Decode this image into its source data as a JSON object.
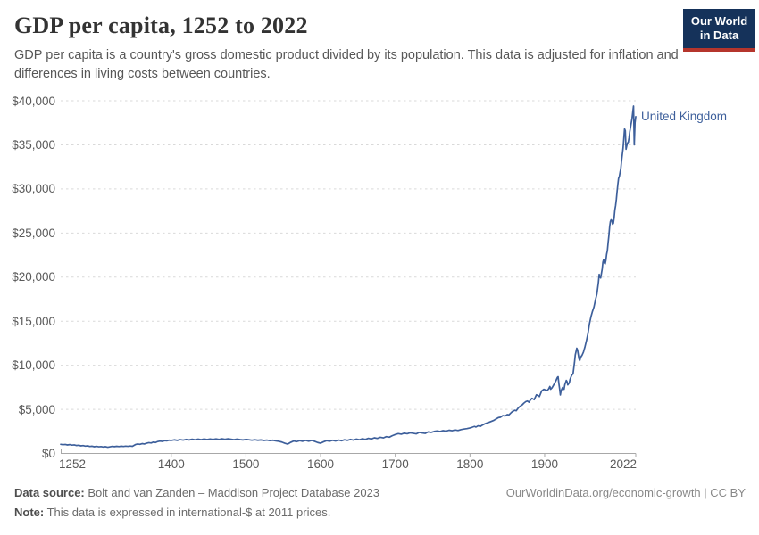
{
  "header": {
    "title": "GDP per capita, 1252 to 2022",
    "subtitle": "GDP per capita is a country's gross domestic product divided by its population. This data is adjusted for inflation and differences in living costs between countries.",
    "logo_line1": "Our World",
    "logo_line2": "in Data"
  },
  "footer": {
    "source_label": "Data source:",
    "source_text": " Bolt and van Zanden – Maddison Project Database 2023",
    "note_label": "Note:",
    "note_text": " This data is expressed in international-$ at 2011 prices.",
    "link_text": "OurWorldinData.org/economic-growth | CC BY"
  },
  "colors": {
    "line": "#3d5f9b",
    "grid": "#d9d9d9",
    "axis": "#a8a8a8",
    "tick_text": "#5a5a5a",
    "logo_bg": "#15325a",
    "logo_accent": "#b5352c"
  },
  "chart_data": {
    "type": "line",
    "title": "GDP per capita, 1252 to 2022",
    "xlabel": "",
    "ylabel": "",
    "xlim": [
      1252,
      2022
    ],
    "ylim": [
      0,
      40000
    ],
    "grid": "horizontal-dashed",
    "legend": "end-of-line-label",
    "x_ticks": [
      {
        "value": 1252,
        "label": "1252"
      },
      {
        "value": 1400,
        "label": "1400"
      },
      {
        "value": 1500,
        "label": "1500"
      },
      {
        "value": 1600,
        "label": "1600"
      },
      {
        "value": 1700,
        "label": "1700"
      },
      {
        "value": 1800,
        "label": "1800"
      },
      {
        "value": 1900,
        "label": "1900"
      },
      {
        "value": 2022,
        "label": "2022"
      }
    ],
    "y_ticks": [
      {
        "value": 0,
        "label": "$0"
      },
      {
        "value": 5000,
        "label": "$5,000"
      },
      {
        "value": 10000,
        "label": "$10,000"
      },
      {
        "value": 15000,
        "label": "$15,000"
      },
      {
        "value": 20000,
        "label": "$20,000"
      },
      {
        "value": 25000,
        "label": "$25,000"
      },
      {
        "value": 30000,
        "label": "$30,000"
      },
      {
        "value": 35000,
        "label": "$35,000"
      },
      {
        "value": 40000,
        "label": "$40,000"
      }
    ],
    "series": [
      {
        "name": "United Kingdom",
        "color": "#3d5f9b",
        "points": [
          [
            1252,
            1030
          ],
          [
            1255,
            990
          ],
          [
            1258,
            1020
          ],
          [
            1261,
            960
          ],
          [
            1264,
            1000
          ],
          [
            1267,
            940
          ],
          [
            1270,
            970
          ],
          [
            1273,
            900
          ],
          [
            1276,
            930
          ],
          [
            1279,
            860
          ],
          [
            1282,
            890
          ],
          [
            1285,
            830
          ],
          [
            1288,
            860
          ],
          [
            1291,
            790
          ],
          [
            1294,
            820
          ],
          [
            1297,
            760
          ],
          [
            1300,
            800
          ],
          [
            1303,
            750
          ],
          [
            1306,
            780
          ],
          [
            1309,
            730
          ],
          [
            1312,
            770
          ],
          [
            1315,
            700
          ],
          [
            1318,
            750
          ],
          [
            1321,
            800
          ],
          [
            1324,
            770
          ],
          [
            1327,
            810
          ],
          [
            1330,
            780
          ],
          [
            1333,
            820
          ],
          [
            1336,
            790
          ],
          [
            1339,
            830
          ],
          [
            1342,
            800
          ],
          [
            1345,
            840
          ],
          [
            1348,
            810
          ],
          [
            1352,
            1000
          ],
          [
            1355,
            1070
          ],
          [
            1358,
            1030
          ],
          [
            1361,
            1110
          ],
          [
            1364,
            1070
          ],
          [
            1367,
            1160
          ],
          [
            1370,
            1220
          ],
          [
            1373,
            1180
          ],
          [
            1376,
            1280
          ],
          [
            1379,
            1240
          ],
          [
            1382,
            1350
          ],
          [
            1385,
            1400
          ],
          [
            1388,
            1360
          ],
          [
            1391,
            1450
          ],
          [
            1394,
            1420
          ],
          [
            1397,
            1500
          ],
          [
            1400,
            1470
          ],
          [
            1404,
            1540
          ],
          [
            1408,
            1480
          ],
          [
            1412,
            1560
          ],
          [
            1416,
            1510
          ],
          [
            1420,
            1590
          ],
          [
            1424,
            1530
          ],
          [
            1428,
            1610
          ],
          [
            1432,
            1550
          ],
          [
            1436,
            1620
          ],
          [
            1440,
            1560
          ],
          [
            1444,
            1630
          ],
          [
            1448,
            1570
          ],
          [
            1452,
            1640
          ],
          [
            1456,
            1580
          ],
          [
            1460,
            1650
          ],
          [
            1464,
            1590
          ],
          [
            1468,
            1655
          ],
          [
            1472,
            1600
          ],
          [
            1476,
            1660
          ],
          [
            1480,
            1610
          ],
          [
            1484,
            1560
          ],
          [
            1488,
            1620
          ],
          [
            1492,
            1570
          ],
          [
            1496,
            1530
          ],
          [
            1500,
            1590
          ],
          [
            1504,
            1550
          ],
          [
            1508,
            1500
          ],
          [
            1512,
            1545
          ],
          [
            1516,
            1490
          ],
          [
            1520,
            1530
          ],
          [
            1524,
            1470
          ],
          [
            1528,
            1510
          ],
          [
            1532,
            1450
          ],
          [
            1536,
            1490
          ],
          [
            1540,
            1430
          ],
          [
            1544,
            1370
          ],
          [
            1548,
            1290
          ],
          [
            1552,
            1160
          ],
          [
            1556,
            1060
          ],
          [
            1560,
            1260
          ],
          [
            1564,
            1410
          ],
          [
            1568,
            1340
          ],
          [
            1572,
            1450
          ],
          [
            1576,
            1380
          ],
          [
            1580,
            1470
          ],
          [
            1584,
            1390
          ],
          [
            1588,
            1480
          ],
          [
            1592,
            1370
          ],
          [
            1596,
            1240
          ],
          [
            1600,
            1160
          ],
          [
            1604,
            1320
          ],
          [
            1608,
            1450
          ],
          [
            1612,
            1390
          ],
          [
            1616,
            1490
          ],
          [
            1620,
            1410
          ],
          [
            1624,
            1510
          ],
          [
            1628,
            1440
          ],
          [
            1632,
            1550
          ],
          [
            1636,
            1480
          ],
          [
            1640,
            1590
          ],
          [
            1644,
            1510
          ],
          [
            1648,
            1620
          ],
          [
            1652,
            1550
          ],
          [
            1656,
            1660
          ],
          [
            1660,
            1590
          ],
          [
            1664,
            1710
          ],
          [
            1668,
            1640
          ],
          [
            1672,
            1770
          ],
          [
            1676,
            1700
          ],
          [
            1680,
            1830
          ],
          [
            1684,
            1760
          ],
          [
            1688,
            1900
          ],
          [
            1692,
            1840
          ],
          [
            1696,
            2010
          ],
          [
            1700,
            2140
          ],
          [
            1704,
            2240
          ],
          [
            1708,
            2180
          ],
          [
            1712,
            2290
          ],
          [
            1716,
            2230
          ],
          [
            1720,
            2340
          ],
          [
            1724,
            2280
          ],
          [
            1728,
            2220
          ],
          [
            1732,
            2380
          ],
          [
            1736,
            2320
          ],
          [
            1740,
            2270
          ],
          [
            1744,
            2440
          ],
          [
            1748,
            2380
          ],
          [
            1752,
            2490
          ],
          [
            1756,
            2540
          ],
          [
            1760,
            2480
          ],
          [
            1764,
            2580
          ],
          [
            1768,
            2520
          ],
          [
            1772,
            2630
          ],
          [
            1776,
            2570
          ],
          [
            1780,
            2660
          ],
          [
            1784,
            2600
          ],
          [
            1788,
            2700
          ],
          [
            1792,
            2760
          ],
          [
            1796,
            2810
          ],
          [
            1800,
            2890
          ],
          [
            1803,
            2970
          ],
          [
            1806,
            3060
          ],
          [
            1808,
            2990
          ],
          [
            1811,
            3130
          ],
          [
            1814,
            3070
          ],
          [
            1817,
            3230
          ],
          [
            1820,
            3360
          ],
          [
            1823,
            3460
          ],
          [
            1826,
            3550
          ],
          [
            1829,
            3650
          ],
          [
            1832,
            3750
          ],
          [
            1835,
            3910
          ],
          [
            1838,
            4060
          ],
          [
            1841,
            4110
          ],
          [
            1844,
            4290
          ],
          [
            1847,
            4240
          ],
          [
            1850,
            4410
          ],
          [
            1852,
            4360
          ],
          [
            1855,
            4610
          ],
          [
            1857,
            4760
          ],
          [
            1860,
            4890
          ],
          [
            1862,
            4840
          ],
          [
            1865,
            5190
          ],
          [
            1867,
            5340
          ],
          [
            1870,
            5510
          ],
          [
            1872,
            5690
          ],
          [
            1875,
            5890
          ],
          [
            1877,
            5940
          ],
          [
            1879,
            5800
          ],
          [
            1881,
            6060
          ],
          [
            1883,
            6250
          ],
          [
            1886,
            6100
          ],
          [
            1889,
            6650
          ],
          [
            1891,
            6560
          ],
          [
            1893,
            6450
          ],
          [
            1896,
            7090
          ],
          [
            1899,
            7270
          ],
          [
            1901,
            7200
          ],
          [
            1903,
            7130
          ],
          [
            1905,
            7270
          ],
          [
            1907,
            7590
          ],
          [
            1908,
            7280
          ],
          [
            1910,
            7460
          ],
          [
            1913,
            7910
          ],
          [
            1915,
            8230
          ],
          [
            1917,
            8610
          ],
          [
            1918,
            8700
          ],
          [
            1919,
            7950
          ],
          [
            1920,
            7360
          ],
          [
            1921,
            6630
          ],
          [
            1922,
            7110
          ],
          [
            1924,
            7470
          ],
          [
            1926,
            7270
          ],
          [
            1927,
            7790
          ],
          [
            1929,
            8280
          ],
          [
            1930,
            8150
          ],
          [
            1931,
            7770
          ],
          [
            1933,
            8000
          ],
          [
            1934,
            8400
          ],
          [
            1936,
            8820
          ],
          [
            1937,
            8960
          ],
          [
            1938,
            9000
          ],
          [
            1940,
            10350
          ],
          [
            1941,
            11170
          ],
          [
            1943,
            11930
          ],
          [
            1944,
            11750
          ],
          [
            1945,
            11230
          ],
          [
            1946,
            10730
          ],
          [
            1947,
            10530
          ],
          [
            1948,
            10820
          ],
          [
            1949,
            11010
          ],
          [
            1950,
            11120
          ],
          [
            1952,
            11500
          ],
          [
            1954,
            12100
          ],
          [
            1956,
            12800
          ],
          [
            1958,
            13600
          ],
          [
            1960,
            14700
          ],
          [
            1962,
            15500
          ],
          [
            1964,
            16100
          ],
          [
            1966,
            16600
          ],
          [
            1968,
            17400
          ],
          [
            1970,
            18100
          ],
          [
            1972,
            19400
          ],
          [
            1973,
            20300
          ],
          [
            1974,
            20000
          ],
          [
            1975,
            19900
          ],
          [
            1976,
            20400
          ],
          [
            1977,
            20900
          ],
          [
            1978,
            21700
          ],
          [
            1979,
            22000
          ],
          [
            1980,
            21600
          ],
          [
            1981,
            21500
          ],
          [
            1982,
            21900
          ],
          [
            1983,
            22600
          ],
          [
            1984,
            23000
          ],
          [
            1985,
            23900
          ],
          [
            1986,
            24700
          ],
          [
            1987,
            25700
          ],
          [
            1988,
            26300
          ],
          [
            1989,
            26500
          ],
          [
            1990,
            26400
          ],
          [
            1991,
            26000
          ],
          [
            1992,
            26100
          ],
          [
            1993,
            26700
          ],
          [
            1994,
            27600
          ],
          [
            1995,
            28100
          ],
          [
            1996,
            28800
          ],
          [
            1997,
            29700
          ],
          [
            1998,
            30500
          ],
          [
            1999,
            31200
          ],
          [
            2000,
            31400
          ],
          [
            2001,
            31900
          ],
          [
            2002,
            32300
          ],
          [
            2003,
            33200
          ],
          [
            2004,
            33900
          ],
          [
            2005,
            34600
          ],
          [
            2006,
            35700
          ],
          [
            2007,
            36800
          ],
          [
            2008,
            36600
          ],
          [
            2009,
            34500
          ],
          [
            2010,
            34900
          ],
          [
            2011,
            35200
          ],
          [
            2012,
            35300
          ],
          [
            2013,
            35800
          ],
          [
            2014,
            36500
          ],
          [
            2015,
            37000
          ],
          [
            2016,
            37500
          ],
          [
            2017,
            38000
          ],
          [
            2018,
            38700
          ],
          [
            2019,
            39400
          ],
          [
            2020,
            35000
          ],
          [
            2021,
            37500
          ],
          [
            2022,
            38200
          ]
        ]
      }
    ]
  }
}
